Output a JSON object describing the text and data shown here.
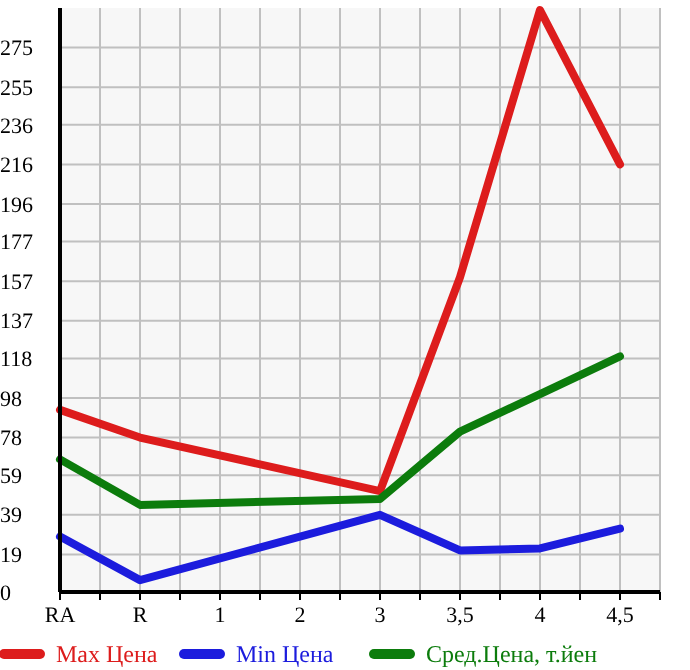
{
  "chart_data": {
    "type": "line",
    "categories": [
      "RA",
      "R",
      "1",
      "2",
      "3",
      "3,5",
      "4",
      "4,5"
    ],
    "series": [
      {
        "name": "Max Цена",
        "color": "#dd1c1c",
        "values": [
          92,
          78,
          null,
          null,
          51,
          159,
          294,
          216
        ]
      },
      {
        "name": "Min Цена",
        "color": "#1c1cdd",
        "values": [
          28,
          6,
          null,
          null,
          39,
          21,
          22,
          32
        ]
      },
      {
        "name": "Сред.Цена, т.йен",
        "color": "#0c7c0c",
        "values": [
          67,
          44,
          null,
          null,
          47,
          81,
          100,
          119
        ]
      }
    ],
    "ylim": [
      0,
      295
    ],
    "yticks": [
      0,
      19,
      39,
      59,
      78,
      98,
      118,
      137,
      157,
      177,
      196,
      216,
      236,
      255,
      275
    ],
    "grid": true,
    "legend": "bottom",
    "marker": "none",
    "line_style": "solid"
  }
}
